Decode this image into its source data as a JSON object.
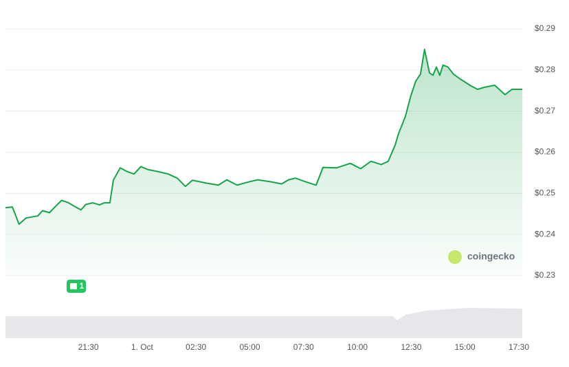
{
  "chart_data": {
    "type": "line",
    "xlim": [
      -6.35,
      17.66
    ],
    "ylim": [
      0.23,
      0.29
    ],
    "xticks": [
      {
        "value": -2.5,
        "label": "21:30"
      },
      {
        "value": 0,
        "label": "1. Oct"
      },
      {
        "value": 2.5,
        "label": "02:30"
      },
      {
        "value": 5,
        "label": "05:00"
      },
      {
        "value": 7.5,
        "label": "07:30"
      },
      {
        "value": 10,
        "label": "10:00"
      },
      {
        "value": 12.5,
        "label": "12:30"
      },
      {
        "value": 15,
        "label": "15:00"
      },
      {
        "value": 17.5,
        "label": "17:30"
      }
    ],
    "yticks": [
      {
        "value": 0.23,
        "label": "$0.23"
      },
      {
        "value": 0.24,
        "label": "$0.24"
      },
      {
        "value": 0.25,
        "label": "$0.25"
      },
      {
        "value": 0.26,
        "label": "$0.26"
      },
      {
        "value": 0.27,
        "label": "$0.27"
      },
      {
        "value": 0.28,
        "label": "$0.28"
      },
      {
        "value": 0.29,
        "label": "$0.29"
      }
    ],
    "grid": true,
    "x": [
      -6.35,
      -6.03,
      -5.72,
      -5.4,
      -4.85,
      -4.63,
      -4.31,
      -4.05,
      -3.74,
      -3.42,
      -3.1,
      -2.84,
      -2.62,
      -2.3,
      -1.98,
      -1.76,
      -1.5,
      -1.34,
      -1.02,
      -0.7,
      -0.38,
      -0.06,
      0.26,
      0.73,
      1.21,
      1.63,
      2.01,
      2.33,
      2.97,
      3.54,
      3.93,
      4.41,
      4.89,
      5.36,
      6.0,
      6.48,
      6.8,
      7.12,
      7.6,
      8.08,
      8.4,
      9.04,
      9.67,
      10.15,
      10.63,
      11.11,
      11.43,
      11.75,
      11.91,
      12.23,
      12.48,
      12.71,
      12.93,
      13.12,
      13.35,
      13.51,
      13.67,
      13.83,
      13.98,
      14.21,
      14.46,
      14.78,
      15.26,
      15.58,
      15.9,
      16.38,
      16.86,
      17.18,
      17.66
    ],
    "series": [
      {
        "color": "#16a34a",
        "values": [
          0.2465,
          0.2467,
          0.2425,
          0.244,
          0.2445,
          0.2458,
          0.2453,
          0.2467,
          0.2483,
          0.2477,
          0.2467,
          0.246,
          0.2473,
          0.2477,
          0.2472,
          0.2477,
          0.2477,
          0.2532,
          0.2562,
          0.2553,
          0.2547,
          0.2565,
          0.2558,
          0.2553,
          0.2547,
          0.2537,
          0.2517,
          0.2532,
          0.2525,
          0.252,
          0.2533,
          0.252,
          0.2527,
          0.2533,
          0.2528,
          0.2523,
          0.2533,
          0.2537,
          0.2528,
          0.252,
          0.2563,
          0.2562,
          0.2573,
          0.256,
          0.2578,
          0.257,
          0.2578,
          0.2617,
          0.2645,
          0.2687,
          0.2737,
          0.2773,
          0.279,
          0.285,
          0.2793,
          0.2787,
          0.2807,
          0.2787,
          0.2812,
          0.2807,
          0.279,
          0.2778,
          0.2762,
          0.2753,
          0.2758,
          0.2763,
          0.274,
          0.2753,
          0.2753
        ]
      }
    ],
    "annotation": "1",
    "watermark": "coingecko"
  }
}
